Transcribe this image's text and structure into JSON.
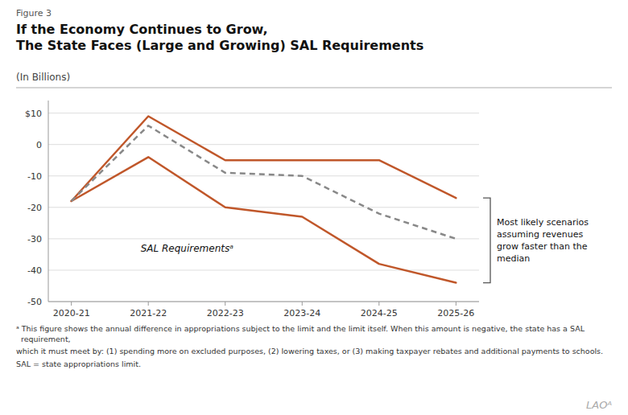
{
  "chart_data": {
    "type": "line",
    "label": "Figure 3",
    "title_lines": [
      "If the Economy Continues to Grow,",
      "The State Faces (Large and Growing) SAL Requirements"
    ],
    "subtitle": "(In Billions)",
    "categories": [
      "2020-21",
      "2021-22",
      "2022-23",
      "2023-24",
      "2024-25",
      "2025-26"
    ],
    "series": [
      {
        "color": "#C0572A",
        "line_style": "solid",
        "values": [
          -18,
          9,
          -5,
          -5,
          -5,
          -17
        ]
      },
      {
        "color": "#C0572A",
        "line_style": "solid",
        "values": [
          -18,
          -4,
          -20,
          -23,
          -38,
          -44
        ]
      },
      {
        "color": "#888888",
        "line_style": "dashed",
        "values": [
          -18,
          6,
          -9,
          -10,
          -22,
          -30
        ]
      }
    ],
    "ylim": [
      -50,
      14
    ],
    "yticks": [
      {
        "value": 10,
        "label": "$10"
      },
      0,
      -10,
      -20,
      -30,
      -40,
      -50
    ],
    "grid": true,
    "annotations": [
      {
        "text": "SAL Requirementsᵃ"
      }
    ],
    "bracket": {
      "lines": [
        "Most likely scenarios",
        "assuming revenues",
        "grow faster than the",
        "median"
      ]
    },
    "footnotes": [
      "ᵃ This figure shows the annual difference in appropriations subject to the limit and the limit itself. When this amount is negative, the state has a SAL requirement,",
      "   which it must meet by: (1) spending more on excluded purposes, (2) lowering taxes, or (3) making taxpayer rebates and additional payments to schools.",
      "SAL = state appropriations limit."
    ],
    "logo": "LAOᴬ"
  }
}
